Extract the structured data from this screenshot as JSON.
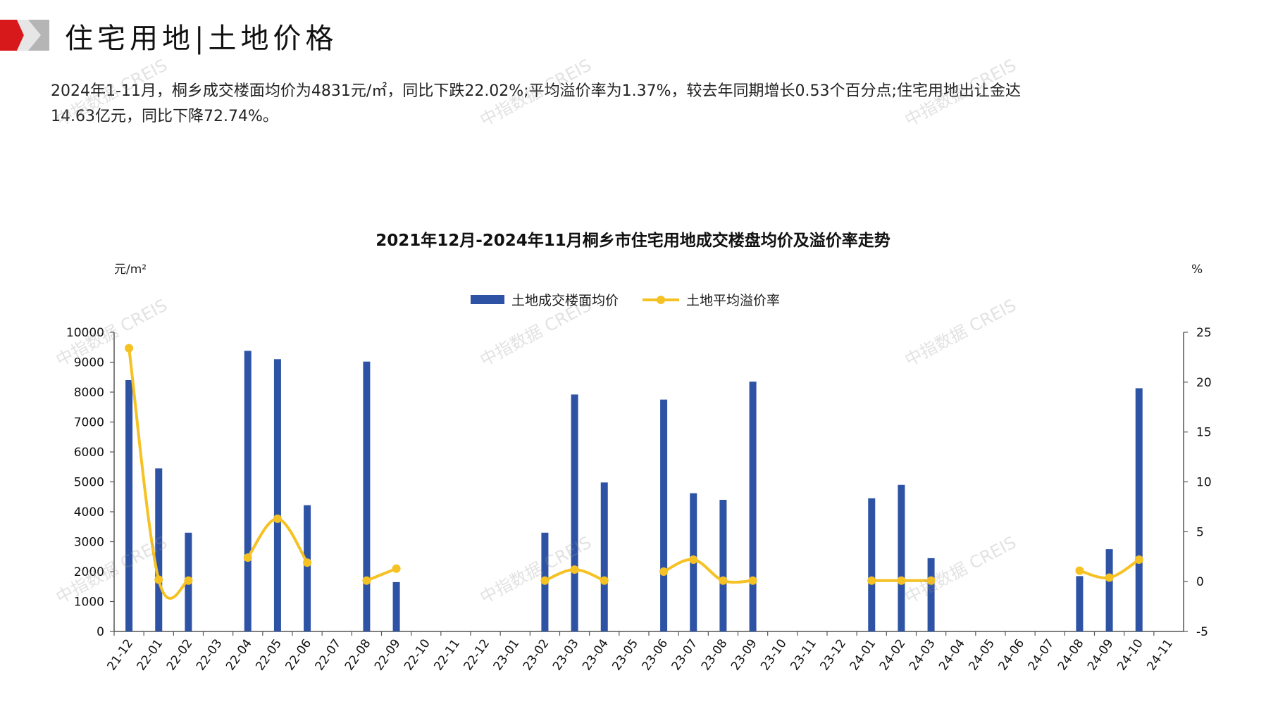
{
  "header": {
    "title": "住宅用地|土地价格",
    "summary_line1": "2024年1-11月，桐乡成交楼面均价为4831元/㎡，同比下跌22.02%;平均溢价率为1.37%，较去年同期增长0.53个百分点;住宅用地出让金达",
    "summary_line2": "14.63亿元，同比下降72.74%。",
    "logo_icon": "brand-logo-icon"
  },
  "watermark_text": "中指数据 CREIS",
  "colors": {
    "bar": "#2e53a5",
    "line": "#f6c122",
    "logo_red": "#d7191c",
    "logo_gray": "#8c8c8c"
  },
  "chart_data": {
    "type": "bar+line",
    "title": "2021年12月-2024年11月桐乡市住宅用地成交楼盘均价及溢价率走势",
    "y_left_unit": "元/m²",
    "y_right_unit": "%",
    "ylim_left": [
      0,
      10000
    ],
    "yticks_left": [
      0,
      1000,
      2000,
      3000,
      4000,
      5000,
      6000,
      7000,
      8000,
      9000,
      10000
    ],
    "ylim_right": [
      -5,
      25
    ],
    "yticks_right": [
      -5,
      0,
      5,
      10,
      15,
      20,
      25
    ],
    "legend_position": "top-center",
    "categories": [
      "21-12",
      "22-01",
      "22-02",
      "22-03",
      "22-04",
      "22-05",
      "22-06",
      "22-07",
      "22-08",
      "22-09",
      "22-10",
      "22-11",
      "22-12",
      "23-01",
      "23-02",
      "23-03",
      "23-04",
      "23-05",
      "23-06",
      "23-07",
      "23-08",
      "23-09",
      "23-10",
      "23-11",
      "23-12",
      "24-01",
      "24-02",
      "24-03",
      "24-04",
      "24-05",
      "24-06",
      "24-07",
      "24-08",
      "24-09",
      "24-10",
      "24-11"
    ],
    "series": [
      {
        "name": "土地成交楼面均价",
        "type": "bar",
        "axis": "left",
        "values": [
          8400,
          5450,
          3300,
          null,
          9380,
          9100,
          4220,
          null,
          9020,
          1650,
          null,
          null,
          null,
          null,
          3300,
          7920,
          4980,
          null,
          7750,
          4620,
          4400,
          8350,
          null,
          null,
          null,
          4450,
          4900,
          2450,
          null,
          null,
          null,
          null,
          1850,
          2750,
          8130,
          null
        ]
      },
      {
        "name": "土地平均溢价率",
        "type": "line",
        "axis": "right",
        "values": [
          23.4,
          0.2,
          0.1,
          null,
          2.4,
          6.3,
          1.9,
          null,
          0.1,
          1.3,
          null,
          null,
          null,
          null,
          0.1,
          1.2,
          0.1,
          null,
          1.0,
          2.2,
          0.1,
          0.1,
          null,
          null,
          null,
          0.1,
          0.1,
          0.1,
          null,
          null,
          null,
          null,
          1.1,
          0.4,
          2.2,
          null
        ]
      }
    ]
  }
}
